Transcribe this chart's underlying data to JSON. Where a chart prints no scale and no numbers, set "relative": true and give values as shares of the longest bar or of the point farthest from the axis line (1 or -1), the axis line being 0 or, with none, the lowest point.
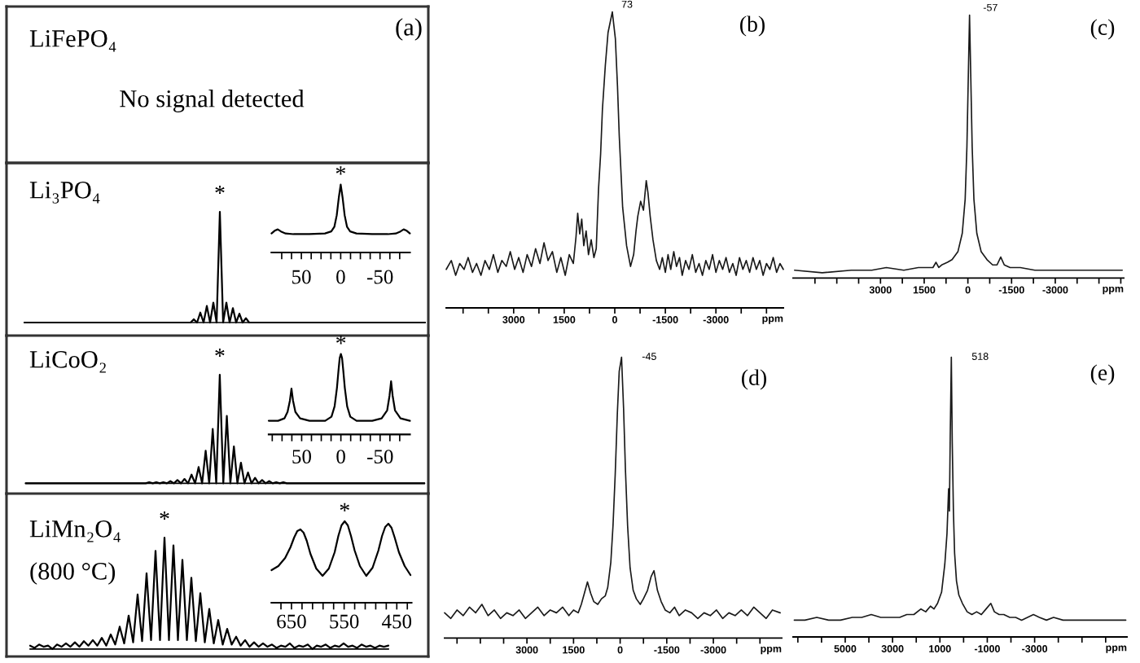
{
  "chart_data": [
    {
      "type": "other",
      "title": "LiFePO₄",
      "annotations": [
        "No signal detected",
        "(a)"
      ]
    },
    {
      "type": "line",
      "title": "Li₃PO₄",
      "relative": true,
      "color": "#000000",
      "categories": [
        null,
        null,
        null,
        null,
        null,
        null,
        null,
        null,
        null,
        null,
        null,
        null,
        null,
        null,
        null,
        null,
        null,
        null,
        null,
        null,
        null,
        null,
        null,
        null,
        null,
        null,
        null,
        null,
        null,
        null,
        null,
        null,
        null,
        null,
        null,
        null,
        null,
        null,
        null,
        null,
        null,
        null,
        null,
        null,
        null,
        null,
        null,
        null,
        null,
        null,
        null,
        null,
        null,
        null,
        null,
        null,
        null,
        null,
        null,
        null,
        null,
        null,
        null,
        null,
        null,
        null,
        null,
        null,
        null,
        null,
        null,
        null,
        null,
        null,
        null,
        null,
        null,
        null,
        null,
        null,
        null,
        null,
        null,
        null,
        null,
        null,
        null,
        null,
        null,
        null,
        null,
        null,
        null,
        null,
        null,
        null,
        null,
        null,
        null,
        null,
        null,
        null,
        null,
        null,
        null,
        null,
        null,
        null,
        null,
        null,
        null,
        null,
        null,
        null,
        null,
        null,
        null,
        null,
        null,
        null,
        null,
        null,
        null,
        null
      ],
      "values": [
        0,
        0,
        0,
        0,
        0,
        0,
        0,
        0,
        0,
        0,
        0,
        0,
        0,
        0,
        0,
        0,
        0,
        0,
        0,
        0,
        0,
        0,
        0,
        0,
        0,
        0,
        0,
        0,
        0,
        0,
        0,
        0,
        0,
        0,
        0,
        0,
        0,
        0,
        0,
        0,
        0,
        0,
        0,
        0,
        0,
        0,
        0,
        0,
        0,
        0,
        0,
        0,
        0.03,
        0,
        0.09,
        0,
        0.15,
        0,
        0.18,
        0,
        1,
        0,
        0.18,
        0,
        0.13,
        0,
        0.08,
        0,
        0.04,
        0,
        0,
        0,
        0,
        0,
        0,
        0,
        0,
        0,
        0,
        0,
        0,
        0,
        0,
        0,
        0,
        0,
        0,
        0,
        0,
        0,
        0,
        0,
        0,
        0,
        0,
        0,
        0,
        0,
        0,
        0,
        0,
        0,
        0,
        0,
        0,
        0,
        0,
        0,
        0,
        0,
        0,
        0,
        0,
        0,
        0,
        0,
        0,
        0,
        0,
        0,
        0,
        0,
        0,
        0
      ],
      "annotations": [
        "*"
      ]
    },
    {
      "type": "line",
      "relative": true,
      "color": "#000000",
      "x": [
        88,
        84,
        80,
        76,
        70,
        60,
        40,
        20,
        12,
        8,
        5,
        2.5,
        0,
        -2.5,
        -5,
        -8,
        -12,
        -20,
        -40,
        -60,
        -70,
        -76,
        -80,
        -84,
        -88
      ],
      "values": [
        0.28,
        0.32,
        0.34,
        0.31,
        0.28,
        0.27,
        0.27,
        0.28,
        0.31,
        0.38,
        0.55,
        0.8,
        1,
        0.8,
        0.55,
        0.38,
        0.31,
        0.28,
        0.27,
        0.27,
        0.28,
        0.31,
        0.34,
        0.32,
        0.28
      ],
      "xlim": [
        88,
        -88
      ],
      "xticks": [
        {
          "value": 75,
          "label": null
        },
        {
          "value": 62.5,
          "label": null
        },
        50,
        {
          "value": 37.5,
          "label": null
        },
        {
          "value": 25,
          "label": null
        },
        {
          "value": 12.5,
          "label": null
        },
        0,
        {
          "value": -12.5,
          "label": null
        },
        {
          "value": -25,
          "label": null
        },
        {
          "value": -37.5,
          "label": null
        },
        -50,
        {
          "value": -62.5,
          "label": null
        },
        {
          "value": -75,
          "label": null
        }
      ],
      "annotations": [
        {
          "text": "*",
          "x": 0,
          "y": 1
        }
      ]
    },
    {
      "type": "line",
      "title": "LiCoO₂",
      "relative": true,
      "color": "#000000",
      "categories": [
        null,
        null,
        null,
        null,
        null,
        null,
        null,
        null,
        null,
        null,
        null,
        null,
        null,
        null,
        null,
        null,
        null,
        null,
        null,
        null,
        null,
        null,
        null,
        null,
        null,
        null,
        null,
        null,
        null,
        null,
        null,
        null,
        null,
        null,
        null,
        null,
        null,
        null,
        null,
        null,
        null,
        null,
        null,
        null,
        null,
        null,
        null,
        null,
        null,
        null,
        null,
        null,
        null,
        null,
        null,
        null,
        null,
        null,
        null,
        null,
        null,
        null,
        null,
        null,
        null,
        null,
        null,
        null,
        null,
        null,
        null,
        null,
        null,
        null,
        null,
        null,
        null,
        null,
        null,
        null,
        null,
        null,
        null,
        null,
        null,
        null,
        null,
        null,
        null,
        null,
        null,
        null,
        null,
        null,
        null,
        null,
        null,
        null,
        null,
        null,
        null,
        null,
        null,
        null,
        null,
        null,
        null,
        null,
        null,
        null,
        null,
        null,
        null,
        null
      ],
      "values": [
        0,
        0,
        0,
        0,
        0,
        0,
        0,
        0,
        0,
        0,
        0,
        0,
        0,
        0,
        0,
        0,
        0,
        0,
        0,
        0,
        0,
        0,
        0,
        0,
        0,
        0,
        0,
        0,
        0,
        0,
        0,
        0,
        0,
        0,
        0,
        0.01,
        0,
        0.01,
        0,
        0.01,
        0,
        0.02,
        0,
        0.03,
        0,
        0.04,
        0,
        0.08,
        0,
        0.15,
        0,
        0.3,
        0,
        0.5,
        0,
        1,
        0,
        0.62,
        0,
        0.34,
        0,
        0.19,
        0,
        0.1,
        0,
        0.05,
        0,
        0.03,
        0,
        0.02,
        0,
        0.01,
        0,
        0.01,
        0,
        0,
        0,
        0,
        0,
        0,
        0,
        0,
        0,
        0,
        0,
        0,
        0,
        0,
        0,
        0,
        0,
        0,
        0,
        0,
        0,
        0,
        0,
        0,
        0,
        0,
        0,
        0,
        0,
        0,
        0,
        0,
        0,
        0,
        0,
        0,
        0,
        0,
        0,
        0
      ],
      "annotations": [
        "*"
      ]
    },
    {
      "type": "line",
      "relative": true,
      "color": "#000000",
      "x": [
        92,
        80,
        72,
        68,
        65,
        63,
        61,
        58,
        52,
        40,
        20,
        12,
        8,
        5,
        3,
        1.5,
        0,
        -1.5,
        -3,
        -5,
        -8,
        -12,
        -20,
        -40,
        -52,
        -59,
        -62,
        -64,
        -66,
        -69,
        -76,
        -88
      ],
      "values": [
        0.17,
        0.17,
        0.2,
        0.28,
        0.42,
        0.57,
        0.42,
        0.28,
        0.2,
        0.17,
        0.17,
        0.22,
        0.35,
        0.58,
        0.8,
        0.95,
        1,
        0.95,
        0.8,
        0.58,
        0.35,
        0.22,
        0.17,
        0.17,
        0.2,
        0.3,
        0.48,
        0.66,
        0.48,
        0.3,
        0.2,
        0.17
      ],
      "xlim": [
        92,
        -88
      ],
      "xticks": [
        {
          "value": 87.5,
          "label": null
        },
        {
          "value": 75,
          "label": null
        },
        {
          "value": 62.5,
          "label": null
        },
        50,
        {
          "value": 37.5,
          "label": null
        },
        {
          "value": 25,
          "label": null
        },
        {
          "value": 12.5,
          "label": null
        },
        0,
        {
          "value": -12.5,
          "label": null
        },
        {
          "value": -25,
          "label": null
        },
        {
          "value": -37.5,
          "label": null
        },
        -50,
        {
          "value": -62.5,
          "label": null
        },
        {
          "value": -75,
          "label": null
        }
      ],
      "annotations": [
        {
          "text": "*",
          "x": 0,
          "y": 1
        }
      ]
    },
    {
      "type": "line",
      "title": "LiMn₂O₄",
      "subtitle": "(800 °C)",
      "relative": true,
      "color": "#000000",
      "categories": [
        null,
        null,
        null,
        null,
        null,
        null,
        null,
        null,
        null,
        null,
        null,
        null,
        null,
        null,
        null,
        null,
        null,
        null,
        null,
        null,
        null,
        null,
        null,
        null,
        null,
        null,
        null,
        null,
        null,
        null,
        null,
        null,
        null,
        null,
        null,
        null,
        null,
        null,
        null,
        null,
        null,
        null,
        null,
        null,
        null,
        null,
        null,
        null,
        null,
        null,
        null,
        null,
        null,
        null,
        null,
        null,
        null,
        null,
        null,
        null,
        null,
        null,
        null,
        null,
        null,
        null,
        null,
        null,
        null,
        null,
        null,
        null,
        null,
        null,
        null,
        null,
        null,
        null,
        null,
        null,
        null
      ],
      "values": [
        0.03,
        0.01,
        0.04,
        0.02,
        0.03,
        0,
        0.04,
        0.02,
        0.05,
        0.02,
        0.06,
        0.02,
        0.07,
        0.03,
        0.08,
        0.03,
        0.1,
        0.03,
        0.13,
        0.04,
        0.2,
        0.05,
        0.3,
        0.06,
        0.49,
        0.07,
        0.68,
        0.08,
        0.88,
        0.08,
        1,
        0.08,
        0.93,
        0.08,
        0.8,
        0.08,
        0.64,
        0.07,
        0.5,
        0.06,
        0.36,
        0.05,
        0.26,
        0.04,
        0.18,
        0.04,
        0.11,
        0.03,
        0.08,
        0.02,
        0.06,
        0.02,
        0.05,
        0.02,
        0.04,
        0.01,
        0.03,
        0.02,
        0.05,
        0.01,
        0.03,
        0.02,
        0.04,
        0,
        0.03,
        0.02,
        0.04,
        0.01,
        0.03,
        0.02,
        0.05,
        0.02,
        0.03,
        0.01,
        0.04,
        0.02,
        0.03,
        0.01,
        0.03,
        0.02,
        0.03
      ],
      "annotations": [
        "*"
      ]
    },
    {
      "type": "line",
      "relative": true,
      "color": "#000000",
      "x": [
        688,
        675,
        662,
        652,
        645,
        639,
        633,
        627,
        621,
        614,
        603,
        591,
        579,
        568,
        561,
        555,
        549,
        543,
        537,
        530,
        520,
        508,
        496,
        485,
        478,
        472,
        466,
        460,
        454,
        446,
        435,
        424
      ],
      "values": [
        0.4,
        0.45,
        0.55,
        0.68,
        0.8,
        0.88,
        0.9,
        0.86,
        0.76,
        0.6,
        0.42,
        0.33,
        0.42,
        0.62,
        0.82,
        0.95,
        1,
        0.95,
        0.82,
        0.64,
        0.45,
        0.33,
        0.43,
        0.64,
        0.82,
        0.93,
        0.97,
        0.92,
        0.8,
        0.62,
        0.45,
        0.34
      ],
      "xlim": [
        688,
        422
      ],
      "xticks": [
        {
          "value": 670,
          "label": null
        },
        650,
        {
          "value": 630,
          "label": null
        },
        {
          "value": 610,
          "label": null
        },
        {
          "value": 590,
          "label": null
        },
        {
          "value": 570,
          "label": null
        },
        550,
        {
          "value": 530,
          "label": null
        },
        {
          "value": 510,
          "label": null
        },
        {
          "value": 490,
          "label": null
        },
        {
          "value": 470,
          "label": null
        },
        450,
        {
          "value": 430,
          "label": null
        }
      ],
      "annotations": [
        {
          "text": "*",
          "x": 549,
          "y": 1
        }
      ]
    },
    {
      "type": "line",
      "title": "(b)",
      "xlabel": "ppm",
      "relative": true,
      "color": "#1a1a1a",
      "x": [
        5000,
        4850,
        4720,
        4600,
        4470,
        4350,
        4220,
        4100,
        3970,
        3850,
        3720,
        3600,
        3470,
        3350,
        3220,
        3100,
        2970,
        2850,
        2720,
        2600,
        2470,
        2350,
        2220,
        2100,
        1980,
        1850,
        1720,
        1600,
        1470,
        1350,
        1230,
        1150,
        1100,
        1040,
        980,
        920,
        850,
        780,
        700,
        620,
        550,
        483,
        420,
        367,
        280,
        200,
        73,
        -17,
        -80,
        -133,
        -233,
        -350,
        -467,
        -560,
        -630,
        -683,
        -767,
        -850,
        -933,
        -983,
        -1050,
        -1133,
        -1233,
        -1330,
        -1410,
        -1500,
        -1580,
        -1660,
        -1750,
        -1830,
        -1920,
        -2000,
        -2100,
        -2200,
        -2300,
        -2400,
        -2500,
        -2600,
        -2700,
        -2800,
        -2900,
        -3000,
        -3100,
        -3200,
        -3300,
        -3400,
        -3500,
        -3600,
        -3700,
        -3800,
        -3900,
        -4000,
        -4100,
        -4200,
        -4300,
        -4400,
        -4500,
        -4600,
        -4700,
        -4800,
        -4900,
        -5000
      ],
      "values": [
        0.13,
        0.16,
        0.11,
        0.15,
        0.13,
        0.17,
        0.12,
        0.15,
        0.11,
        0.16,
        0.13,
        0.18,
        0.12,
        0.16,
        0.14,
        0.19,
        0.13,
        0.17,
        0.12,
        0.18,
        0.14,
        0.2,
        0.15,
        0.22,
        0.16,
        0.19,
        0.12,
        0.17,
        0.11,
        0.18,
        0.15,
        0.24,
        0.32,
        0.25,
        0.3,
        0.21,
        0.26,
        0.18,
        0.23,
        0.17,
        0.2,
        0.4,
        0.52,
        0.67,
        0.82,
        0.93,
        1,
        0.91,
        0.75,
        0.58,
        0.34,
        0.21,
        0.14,
        0.18,
        0.26,
        0.31,
        0.36,
        0.33,
        0.43,
        0.39,
        0.31,
        0.23,
        0.16,
        0.13,
        0.17,
        0.12,
        0.18,
        0.13,
        0.19,
        0.14,
        0.17,
        0.11,
        0.16,
        0.13,
        0.18,
        0.12,
        0.15,
        0.11,
        0.16,
        0.13,
        0.18,
        0.12,
        0.16,
        0.13,
        0.17,
        0.12,
        0.15,
        0.11,
        0.17,
        0.13,
        0.16,
        0.12,
        0.17,
        0.13,
        0.16,
        0.11,
        0.15,
        0.13,
        0.17,
        0.12,
        0.15,
        0.13
      ],
      "xlim": [
        5000,
        -5000
      ],
      "xticks": [
        {
          "value": 4500,
          "label": null
        },
        {
          "value": 3750,
          "label": null
        },
        3000,
        {
          "value": 2250,
          "label": null
        },
        1500,
        {
          "value": 750,
          "label": null
        },
        0,
        {
          "value": -750,
          "label": null
        },
        -1500,
        {
          "value": -2250,
          "label": null
        },
        -3000,
        {
          "value": -3750,
          "label": null
        },
        {
          "value": -4500,
          "label": null
        }
      ],
      "annotations": [
        {
          "text": "73",
          "x": 73,
          "y": 1
        }
      ]
    },
    {
      "type": "line",
      "title": "(c)",
      "xlabel": "ppm",
      "relative": true,
      "color": "#1a1a1a",
      "x": [
        5950,
        5000,
        4000,
        3300,
        2800,
        2200,
        1700,
        1400,
        1200,
        1094,
        1000,
        900,
        700,
        543,
        343,
        193,
        93,
        33,
        -17,
        -57,
        -97,
        -147,
        -207,
        -307,
        -457,
        -657,
        -850,
        -1000,
        -1128,
        -1250,
        -1450,
        -1800,
        -2300,
        -3000,
        -4000,
        -5300
      ],
      "values": [
        0.03,
        0.02,
        0.03,
        0.03,
        0.04,
        0.03,
        0.04,
        0.04,
        0.04,
        0.06,
        0.04,
        0.05,
        0.06,
        0.07,
        0.1,
        0.17,
        0.3,
        0.5,
        0.78,
        1,
        0.78,
        0.5,
        0.3,
        0.17,
        0.1,
        0.07,
        0.05,
        0.05,
        0.08,
        0.05,
        0.04,
        0.04,
        0.03,
        0.03,
        0.03,
        0.03
      ],
      "xlim": [
        6000,
        -5350
      ],
      "xticks": [
        {
          "value": 5250,
          "label": null
        },
        {
          "value": 4500,
          "label": null
        },
        {
          "value": 3750,
          "label": null
        },
        3000,
        {
          "value": 2250,
          "label": null
        },
        1500,
        {
          "value": 750,
          "label": null
        },
        0,
        {
          "value": -750,
          "label": null
        },
        -1500,
        {
          "value": -2250,
          "label": null
        },
        -3000,
        {
          "value": -3750,
          "label": null
        },
        {
          "value": -4500,
          "label": null
        },
        {
          "value": -5250,
          "label": null
        }
      ],
      "annotations": [
        {
          "text": "-57",
          "x": -57,
          "y": 1
        }
      ]
    },
    {
      "type": "line",
      "title": "(d)",
      "xlabel": "ppm",
      "relative": true,
      "color": "#1a1a1a",
      "x": [
        5650,
        5450,
        5250,
        5050,
        4850,
        4650,
        4450,
        4250,
        4050,
        3850,
        3650,
        3450,
        3250,
        3050,
        2850,
        2650,
        2450,
        2250,
        2050,
        1850,
        1650,
        1500,
        1350,
        1250,
        1150,
        1052,
        950,
        850,
        720,
        600,
        480,
        400,
        300,
        230,
        160,
        90,
        30,
        -45,
        -110,
        -170,
        -240,
        -320,
        -420,
        -520,
        -647,
        -750,
        -880,
        -1000,
        -1089,
        -1200,
        -1320,
        -1450,
        -1600,
        -1750,
        -1900,
        -2100,
        -2300,
        -2500,
        -2700,
        -2900,
        -3100,
        -3300,
        -3500,
        -3700,
        -3900,
        -4100,
        -4300,
        -4500,
        -4700,
        -4900,
        -5150
      ],
      "values": [
        0.09,
        0.07,
        0.1,
        0.08,
        0.11,
        0.09,
        0.12,
        0.08,
        0.1,
        0.07,
        0.09,
        0.08,
        0.1,
        0.07,
        0.09,
        0.11,
        0.08,
        0.1,
        0.09,
        0.11,
        0.08,
        0.1,
        0.09,
        0.12,
        0.16,
        0.2,
        0.16,
        0.13,
        0.12,
        0.14,
        0.15,
        0.18,
        0.27,
        0.4,
        0.58,
        0.8,
        0.95,
        1,
        0.82,
        0.6,
        0.4,
        0.25,
        0.17,
        0.14,
        0.12,
        0.14,
        0.17,
        0.22,
        0.24,
        0.17,
        0.13,
        0.1,
        0.09,
        0.11,
        0.08,
        0.1,
        0.09,
        0.07,
        0.09,
        0.08,
        0.1,
        0.07,
        0.09,
        0.08,
        0.1,
        0.08,
        0.11,
        0.09,
        0.07,
        0.1,
        0.09
      ],
      "xlim": [
        5650,
        -5200
      ],
      "xticks": [
        {
          "value": 5250,
          "label": null
        },
        {
          "value": 4500,
          "label": null
        },
        {
          "value": 3750,
          "label": null
        },
        3000,
        {
          "value": 2250,
          "label": null
        },
        1500,
        {
          "value": 750,
          "label": null
        },
        0,
        {
          "value": -750,
          "label": null
        },
        -1500,
        {
          "value": -2250,
          "label": null
        },
        -3000,
        {
          "value": -3750,
          "label": null
        },
        {
          "value": -4500,
          "label": null
        }
      ],
      "annotations": [
        {
          "text": "-45",
          "x": -45,
          "y": 1
        }
      ]
    },
    {
      "type": "line",
      "title": "(e)",
      "xlabel": "ppm",
      "relative": true,
      "color": "#1a1a1a",
      "x": [
        7150,
        6700,
        6200,
        5700,
        5200,
        4700,
        4300,
        3900,
        3500,
        3100,
        2700,
        2400,
        2100,
        1800,
        1600,
        1400,
        1250,
        1100,
        930,
        793,
        701,
        633,
        600,
        564,
        518,
        480,
        430,
        380,
        300,
        200,
        50,
        -150,
        -350,
        -550,
        -750,
        -950,
        -1150,
        -1300,
        -1500,
        -1700,
        -1950,
        -2200,
        -2450,
        -2700,
        -2950,
        -3200,
        -3500,
        -3800,
        -4200,
        -4600,
        -5000,
        -5500,
        -6000,
        -6500,
        -6850
      ],
      "values": [
        0.06,
        0.06,
        0.07,
        0.06,
        0.06,
        0.07,
        0.07,
        0.08,
        0.07,
        0.07,
        0.07,
        0.08,
        0.08,
        0.1,
        0.09,
        0.11,
        0.1,
        0.12,
        0.16,
        0.26,
        0.37,
        0.53,
        0.45,
        0.72,
        1,
        0.7,
        0.45,
        0.3,
        0.2,
        0.15,
        0.12,
        0.09,
        0.08,
        0.09,
        0.08,
        0.1,
        0.12,
        0.09,
        0.08,
        0.08,
        0.07,
        0.07,
        0.06,
        0.07,
        0.08,
        0.07,
        0.06,
        0.07,
        0.06,
        0.06,
        0.06,
        0.06,
        0.06,
        0.06,
        0.06
      ],
      "xlim": [
        7200,
        -6900
      ],
      "xticks": [
        {
          "value": 7000,
          "label": null
        },
        {
          "value": 6000,
          "label": null
        },
        5000,
        {
          "value": 4000,
          "label": null
        },
        3000,
        {
          "value": 2000,
          "label": null
        },
        1000,
        {
          "value": 0,
          "label": null
        },
        -1000,
        {
          "value": -2000,
          "label": null
        },
        -3000,
        {
          "value": -4000,
          "label": null
        },
        {
          "value": -5000,
          "label": null
        },
        {
          "value": -6000,
          "label": null
        }
      ],
      "annotations": [
        {
          "text": "518",
          "x": 518,
          "y": 1
        }
      ]
    }
  ]
}
